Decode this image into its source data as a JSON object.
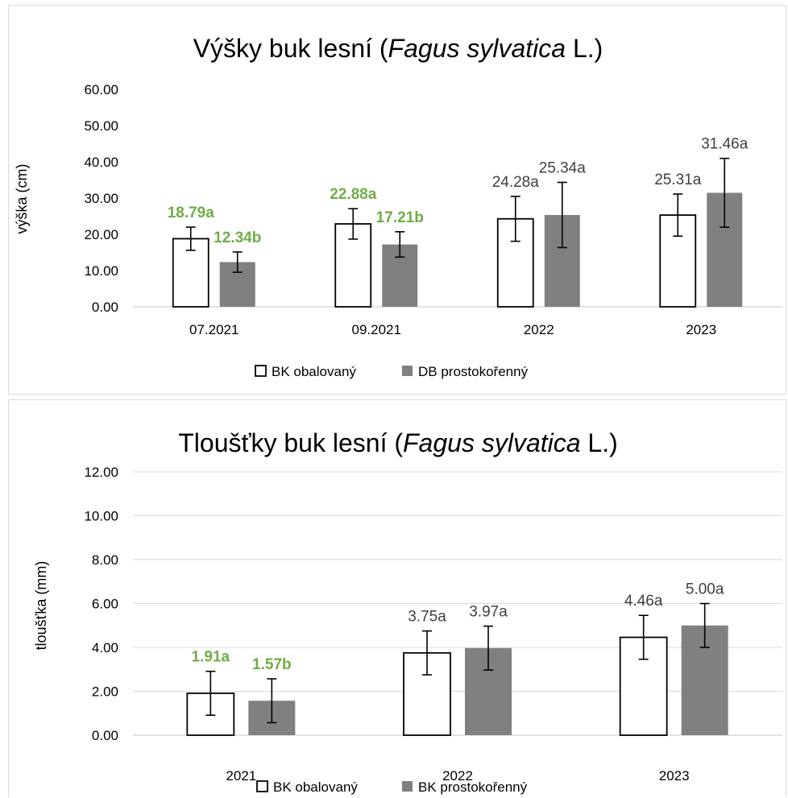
{
  "chart_data": [
    {
      "type": "bar",
      "title_parts": [
        "Výšky buk lesní (",
        "Fagus sylvatica",
        " L.)"
      ],
      "ylabel": "výška (cm)",
      "xlabel": "",
      "ylim": [
        0,
        60
      ],
      "y_ticks": [
        "0.00",
        "10.00",
        "20.00",
        "30.00",
        "40.00",
        "50.00",
        "60.00"
      ],
      "categories": [
        "07.2021",
        "09.2021",
        "2022",
        "2023"
      ],
      "series": [
        {
          "name": "BK obalovaný",
          "values": [
            18.79,
            22.88,
            24.28,
            25.31
          ],
          "errors": [
            3.2,
            4.2,
            6.2,
            5.8
          ]
        },
        {
          "name": "DB prostokořenný",
          "values": [
            12.34,
            17.21,
            25.34,
            31.46
          ],
          "errors": [
            2.8,
            3.5,
            9.0,
            9.5
          ]
        }
      ],
      "data_labels": [
        [
          "18.79a",
          "22.88a",
          "24.28a",
          "25.31a"
        ],
        [
          "12.34b",
          "17.21b",
          "25.34a",
          "31.46a"
        ]
      ],
      "label_highlight": [
        [
          true,
          true,
          false,
          false
        ],
        [
          true,
          true,
          false,
          false
        ]
      ],
      "legend_position": "bottom",
      "grid": false
    },
    {
      "type": "bar",
      "title_parts": [
        "Tloušťky buk lesní (",
        "Fagus sylvatica",
        " L.)"
      ],
      "ylabel": "tloušťka (mm)",
      "xlabel": "",
      "ylim": [
        0,
        12
      ],
      "y_ticks": [
        "0.00",
        "2.00",
        "4.00",
        "6.00",
        "8.00",
        "10.00",
        "12.00"
      ],
      "categories": [
        "2021",
        "2022",
        "2023"
      ],
      "series": [
        {
          "name": "BK obalovaný",
          "values": [
            1.91,
            3.75,
            4.46
          ],
          "errors": [
            1.0,
            1.0,
            1.0
          ]
        },
        {
          "name": "BK prostokořenný",
          "values": [
            1.57,
            3.97,
            5.0
          ],
          "errors": [
            1.0,
            1.0,
            1.0
          ]
        }
      ],
      "data_labels": [
        [
          "1.91a",
          "3.75a",
          "4.46a"
        ],
        [
          "1.57b",
          "3.97a",
          "5.00a"
        ]
      ],
      "label_highlight": [
        [
          true,
          false,
          false
        ],
        [
          true,
          false,
          false
        ]
      ],
      "legend_position": "bottom",
      "grid": true
    }
  ],
  "colors": {
    "series_fill": [
      "#ffffff",
      "#808080"
    ],
    "series_stroke": [
      "#000000",
      "#808080"
    ],
    "highlight_label": "#70ad47",
    "plain_label": "#404040",
    "grid": "#d9d9d9",
    "axis": "#d9d9d9"
  }
}
